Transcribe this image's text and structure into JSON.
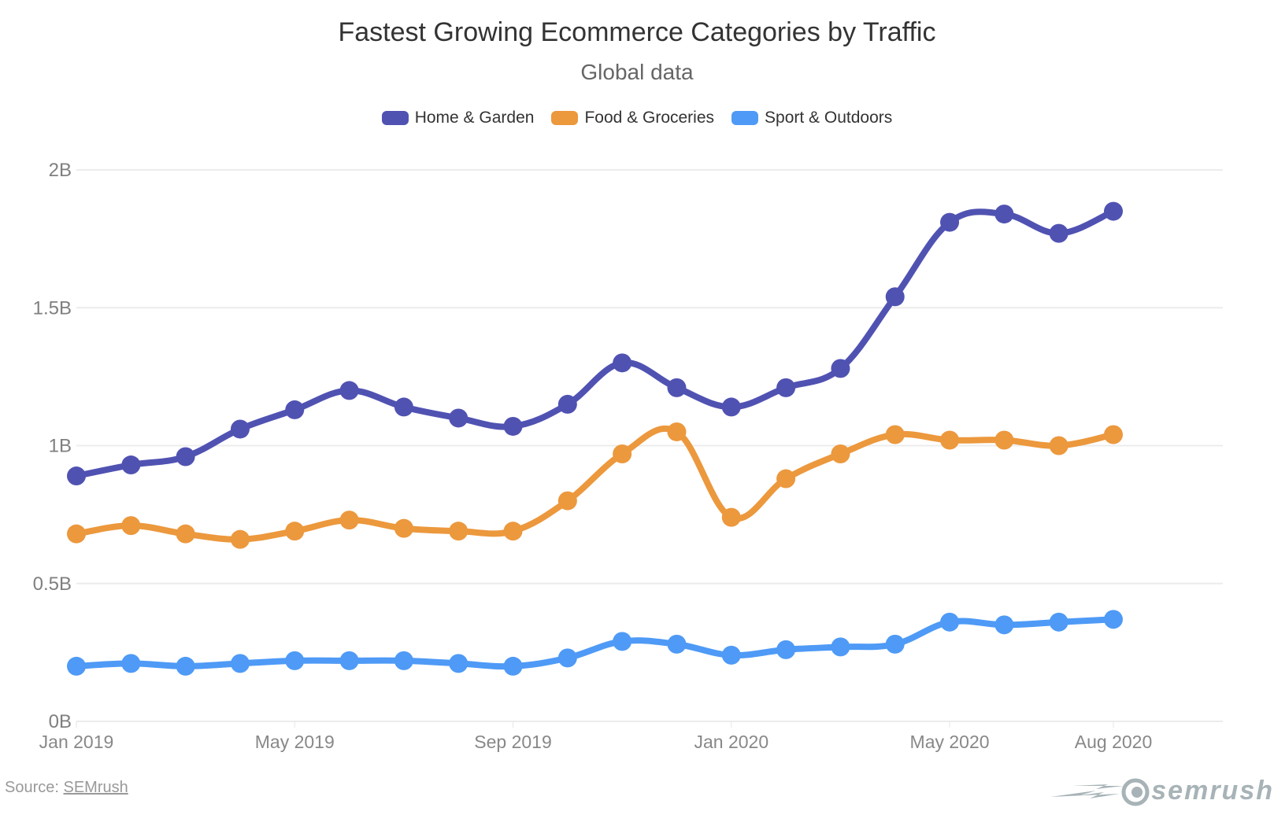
{
  "chart_data": {
    "type": "line",
    "title": "Fastest Growing Ecommerce Categories by Traffic",
    "subtitle": "Global data",
    "xlabel": "",
    "ylabel": "",
    "x": [
      "2019-01",
      "2019-02",
      "2019-03",
      "2019-04",
      "2019-05",
      "2019-06",
      "2019-07",
      "2019-08",
      "2019-09",
      "2019-10",
      "2019-11",
      "2019-12",
      "2020-01",
      "2020-02",
      "2020-03",
      "2020-04",
      "2020-05",
      "2020-06",
      "2020-07",
      "2020-08"
    ],
    "x_ticks": [
      {
        "index": 0,
        "label": "Jan 2019"
      },
      {
        "index": 4,
        "label": "May 2019"
      },
      {
        "index": 8,
        "label": "Sep 2019"
      },
      {
        "index": 12,
        "label": "Jan 2020"
      },
      {
        "index": 16,
        "label": "May 2020"
      },
      {
        "index": 19,
        "label": "Aug 2020"
      }
    ],
    "x_extent_months": 21,
    "ylim": [
      0,
      2
    ],
    "y_unit": "B",
    "y_ticks": [
      {
        "value": 0,
        "label": "0B"
      },
      {
        "value": 0.5,
        "label": "0.5B"
      },
      {
        "value": 1,
        "label": "1B"
      },
      {
        "value": 1.5,
        "label": "1.5B"
      },
      {
        "value": 2,
        "label": "2B"
      }
    ],
    "grid": true,
    "legend_position": "top-center",
    "series": [
      {
        "name": "Home & Garden",
        "color": "#5052b2",
        "values": [
          0.89,
          0.93,
          0.96,
          1.06,
          1.13,
          1.2,
          1.14,
          1.1,
          1.07,
          1.15,
          1.3,
          1.21,
          1.14,
          1.21,
          1.28,
          1.54,
          1.81,
          1.84,
          1.77,
          1.85
        ]
      },
      {
        "name": "Food & Groceries",
        "color": "#ec983d",
        "values": [
          0.68,
          0.71,
          0.68,
          0.66,
          0.69,
          0.73,
          0.7,
          0.69,
          0.69,
          0.8,
          0.97,
          1.05,
          0.74,
          0.88,
          0.97,
          1.04,
          1.02,
          1.02,
          1.0,
          1.04
        ]
      },
      {
        "name": "Sport & Outdoors",
        "color": "#4e9af6",
        "values": [
          0.2,
          0.21,
          0.2,
          0.21,
          0.22,
          0.22,
          0.22,
          0.21,
          0.2,
          0.23,
          0.29,
          0.28,
          0.24,
          0.26,
          0.27,
          0.28,
          0.36,
          0.35,
          0.36,
          0.37
        ]
      }
    ]
  },
  "footer": {
    "source_prefix": "Source: ",
    "source_link": "SEMrush",
    "logo_text": "semrush"
  }
}
